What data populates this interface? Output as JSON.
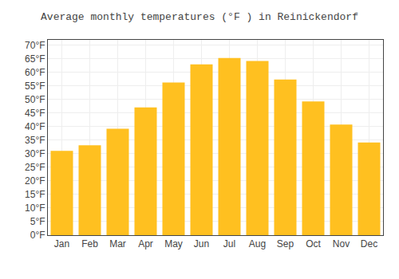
{
  "chart_data": {
    "type": "bar",
    "title": "Average monthly temperatures (°F ) in Reinickendorf",
    "categories": [
      "Jan",
      "Feb",
      "Mar",
      "Apr",
      "May",
      "Jun",
      "Jul",
      "Aug",
      "Sep",
      "Oct",
      "Nov",
      "Dec"
    ],
    "values": [
      31.1,
      33.1,
      39.2,
      47.1,
      56.3,
      63.0,
      65.3,
      64.2,
      57.4,
      49.3,
      40.8,
      34.2
    ],
    "color": "#FFC020",
    "ylim": [
      0,
      72
    ],
    "yticks": [
      {
        "value": 0,
        "label": "0°F"
      },
      {
        "value": 5,
        "label": "5°F"
      },
      {
        "value": 10,
        "label": "10°F"
      },
      {
        "value": 15,
        "label": "15°F"
      },
      {
        "value": 20,
        "label": "20°F"
      },
      {
        "value": 25,
        "label": "25°F"
      },
      {
        "value": 30,
        "label": "30°F"
      },
      {
        "value": 35,
        "label": "35°F"
      },
      {
        "value": 40,
        "label": "40°F"
      },
      {
        "value": 45,
        "label": "45°F"
      },
      {
        "value": 50,
        "label": "50°F"
      },
      {
        "value": 55,
        "label": "55°F"
      },
      {
        "value": 60,
        "label": "60°F"
      },
      {
        "value": 65,
        "label": "65°F"
      },
      {
        "value": 70,
        "label": "70°F"
      }
    ],
    "grid": true
  }
}
